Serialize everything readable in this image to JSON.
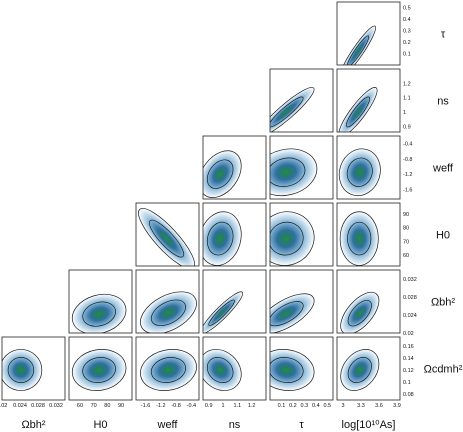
{
  "chart_data": {
    "type": "triangle",
    "grid": false,
    "legend": "none",
    "colors": {
      "low_density": "#e3eef7",
      "mid_density": "#8ab8d8",
      "high_density": "#2f6f9e",
      "core": "#1f8f4a",
      "contour": "#1a1a1a",
      "frame": "#222222"
    },
    "parameters": [
      {
        "key": "omegabh2",
        "label_main": "Ω",
        "label_sub": "b",
        "label_tail": "h²",
        "ticks": [
          "0.02",
          "0.024",
          "0.028",
          "0.032"
        ],
        "range": [
          0.02,
          0.034
        ]
      },
      {
        "key": "h0",
        "label_main": "H",
        "label_sub": "0",
        "label_tail": "",
        "ticks": [
          "60",
          "70",
          "80",
          "90"
        ],
        "range": [
          52,
          98
        ]
      },
      {
        "key": "weff",
        "label_main": "w",
        "label_sub": "eff",
        "label_tail": "",
        "ticks": [
          "-1.6",
          "-1.2",
          "-0.8",
          "-0.4"
        ],
        "range": [
          -1.85,
          -0.2
        ]
      },
      {
        "key": "ns",
        "label_main": "n",
        "label_sub": "s",
        "label_tail": "",
        "ticks": [
          "0.9",
          "1",
          "1.1",
          "1.2"
        ],
        "range": [
          0.86,
          1.3
        ]
      },
      {
        "key": "tau",
        "label_main": "τ",
        "label_sub": "",
        "label_tail": "",
        "ticks": [
          "0.1",
          "0.2",
          "0.3",
          "0.4",
          "0.5"
        ],
        "range": [
          0.0,
          0.55
        ]
      },
      {
        "key": "logA",
        "label_main": "log[10",
        "label_sub": "",
        "label_tail": "",
        "label_super": "10",
        "label_full": "log[10¹⁰A_s]",
        "ticks": [
          "3",
          "3.3",
          "3.6",
          "3.9"
        ],
        "range": [
          2.9,
          3.95
        ]
      },
      {
        "key": "omegacdmh2",
        "label_main": "Ω",
        "label_sub": "cdm",
        "label_tail": "h²",
        "ticks": [
          "0.08",
          "0.1",
          "0.12",
          "0.14",
          "0.16"
        ],
        "range": [
          0.07,
          0.175
        ]
      }
    ],
    "bottom_labels": [
      "Ωbh²",
      "H0",
      "weff",
      "ns",
      "τ",
      "log[10¹⁰As]"
    ],
    "right_labels": [
      "τ",
      "ns",
      "weff",
      "H0",
      "Ωbh²",
      "Ωcdmh²"
    ],
    "panels": [
      {
        "x": "logA",
        "y": "tau",
        "mean": [
          3.25,
          0.12
        ],
        "sd": [
          0.12,
          0.09
        ],
        "corr": 0.93
      },
      {
        "x": "tau",
        "y": "ns",
        "mean": [
          0.14,
          1.0
        ],
        "sd": [
          0.1,
          0.07
        ],
        "corr": 0.92
      },
      {
        "x": "logA",
        "y": "ns",
        "mean": [
          3.25,
          1.0
        ],
        "sd": [
          0.13,
          0.07
        ],
        "corr": 0.88
      },
      {
        "x": "ns",
        "y": "weff",
        "mean": [
          0.98,
          -1.2
        ],
        "sd": [
          0.06,
          0.25
        ],
        "corr": 0.35
      },
      {
        "x": "tau",
        "y": "weff",
        "mean": [
          0.14,
          -1.15
        ],
        "sd": [
          0.11,
          0.25
        ],
        "corr": 0.15
      },
      {
        "x": "logA",
        "y": "weff",
        "mean": [
          3.28,
          -1.15
        ],
        "sd": [
          0.14,
          0.25
        ],
        "corr": 0.1
      },
      {
        "x": "weff",
        "y": "h0",
        "mean": [
          -1.05,
          72
        ],
        "sd": [
          0.3,
          9
        ],
        "corr": -0.85
      },
      {
        "x": "ns",
        "y": "h0",
        "mean": [
          0.98,
          72
        ],
        "sd": [
          0.06,
          8
        ],
        "corr": 0.15
      },
      {
        "x": "tau",
        "y": "h0",
        "mean": [
          0.14,
          72
        ],
        "sd": [
          0.1,
          8
        ],
        "corr": 0.05
      },
      {
        "x": "logA",
        "y": "h0",
        "mean": [
          3.27,
          72
        ],
        "sd": [
          0.13,
          8
        ],
        "corr": 0.0
      },
      {
        "x": "h0",
        "y": "omegabh2",
        "mean": [
          74,
          0.0242
        ],
        "sd": [
          8,
          0.0018
        ],
        "corr": 0.2
      },
      {
        "x": "weff",
        "y": "omegabh2",
        "mean": [
          -1.0,
          0.0245
        ],
        "sd": [
          0.3,
          0.0019
        ],
        "corr": 0.45
      },
      {
        "x": "ns",
        "y": "omegabh2",
        "mean": [
          0.99,
          0.0245
        ],
        "sd": [
          0.06,
          0.0019
        ],
        "corr": 0.92
      },
      {
        "x": "tau",
        "y": "omegabh2",
        "mean": [
          0.14,
          0.0243
        ],
        "sd": [
          0.1,
          0.0018
        ],
        "corr": 0.65
      },
      {
        "x": "logA",
        "y": "omegabh2",
        "mean": [
          3.28,
          0.0244
        ],
        "sd": [
          0.13,
          0.0019
        ],
        "corr": 0.6
      },
      {
        "x": "omegabh2",
        "y": "omegacdmh2",
        "mean": [
          0.0242,
          0.12
        ],
        "sd": [
          0.0019,
          0.014
        ],
        "corr": 0.0
      },
      {
        "x": "h0",
        "y": "omegacdmh2",
        "mean": [
          74,
          0.12
        ],
        "sd": [
          8,
          0.014
        ],
        "corr": 0.1
      },
      {
        "x": "weff",
        "y": "omegacdmh2",
        "mean": [
          -1.0,
          0.12
        ],
        "sd": [
          0.3,
          0.014
        ],
        "corr": 0.15
      },
      {
        "x": "ns",
        "y": "omegacdmh2",
        "mean": [
          0.98,
          0.12
        ],
        "sd": [
          0.06,
          0.014
        ],
        "corr": -0.2
      },
      {
        "x": "tau",
        "y": "omegacdmh2",
        "mean": [
          0.14,
          0.12
        ],
        "sd": [
          0.1,
          0.014
        ],
        "corr": -0.1
      },
      {
        "x": "logA",
        "y": "omegacdmh2",
        "mean": [
          3.28,
          0.12
        ],
        "sd": [
          0.13,
          0.014
        ],
        "corr": 0.3
      }
    ]
  }
}
